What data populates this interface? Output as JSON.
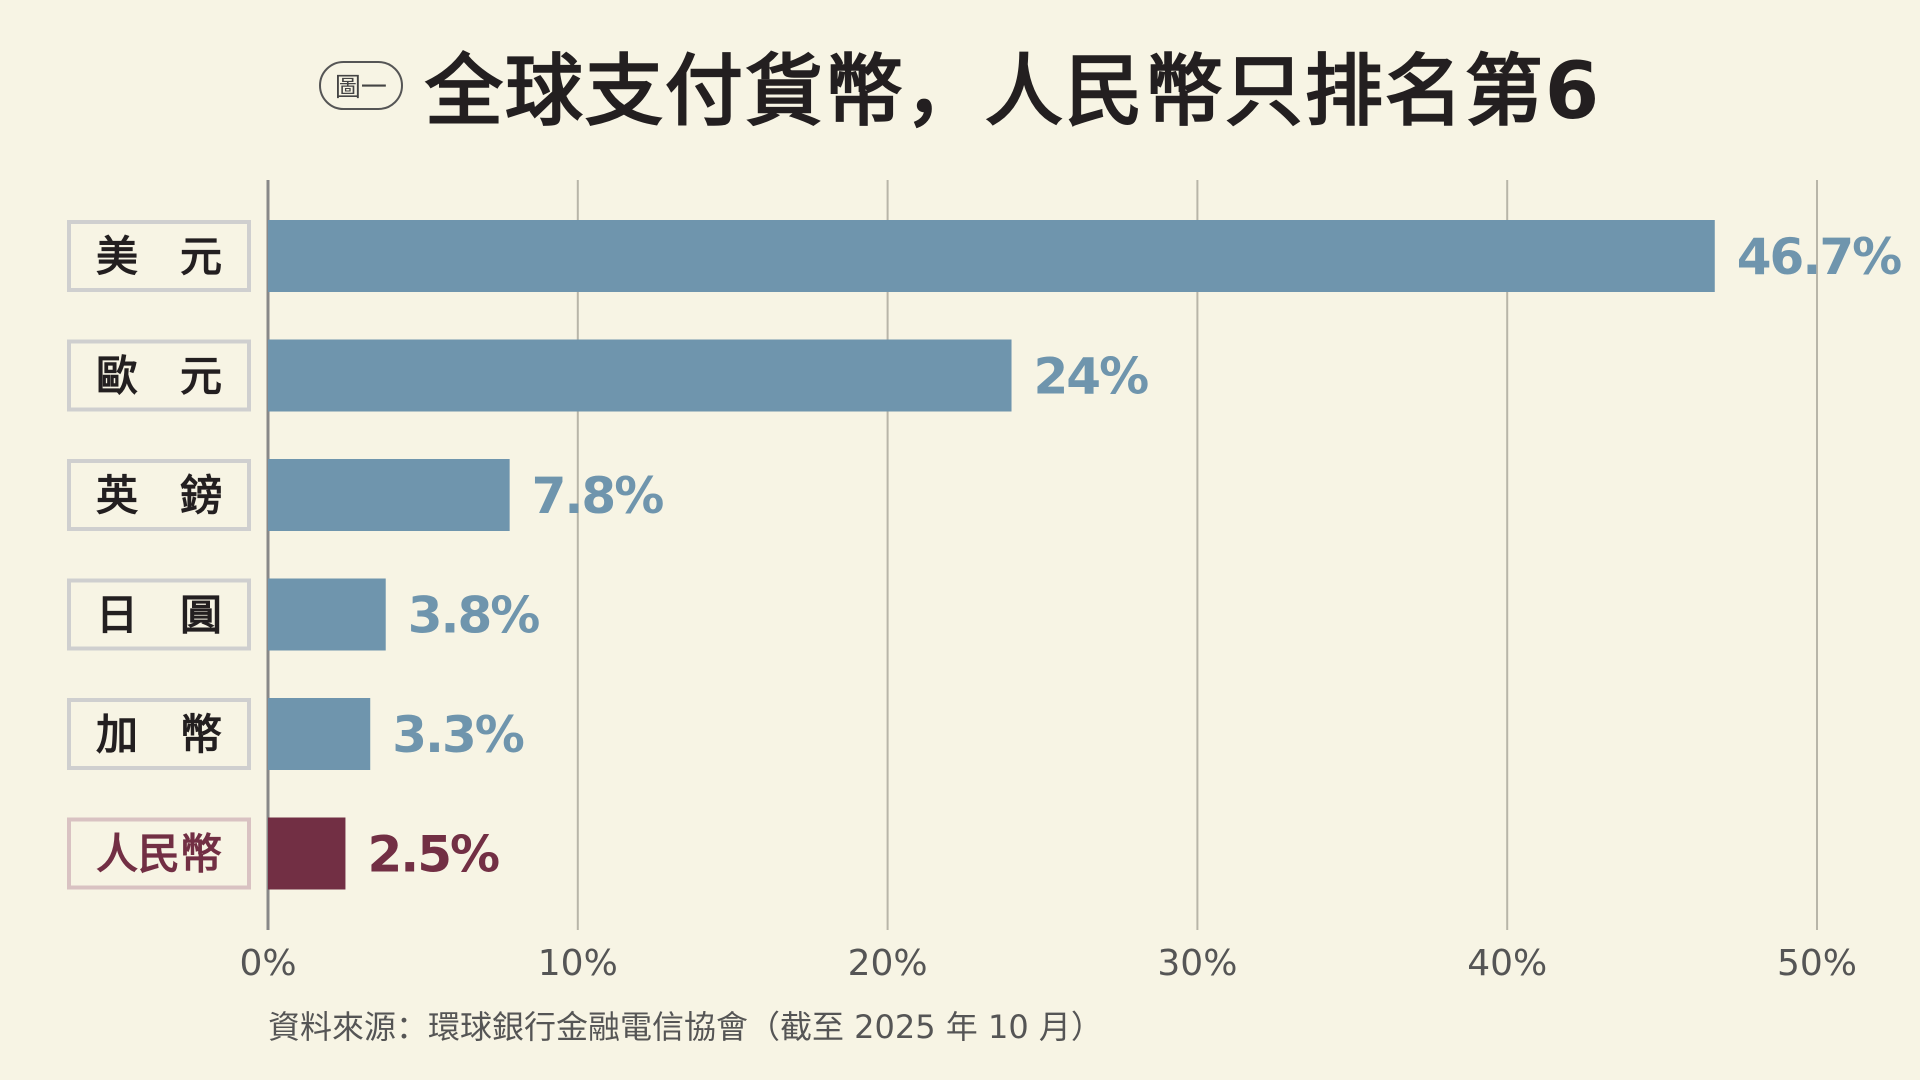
{
  "figure_badge": "圖一",
  "title": "全球支付貨幣，人民幣只排名第6",
  "source": "資料來源：環球銀行金融電信協會（截至 2025 年 10 月）",
  "colors": {
    "background": "#f7f4e4",
    "bar_default": "#6f95ad",
    "bar_highlight": "#722f44",
    "label_default": "#6f95ad",
    "label_highlight": "#722f44",
    "category_text": "#231f20",
    "category_highlight_text": "#722f44",
    "gridline": "#b8b5a8",
    "axis": "#888888"
  },
  "chart_data": {
    "type": "bar",
    "orientation": "horizontal",
    "categories": [
      "美　元",
      "歐　元",
      "英　鎊",
      "日　圓",
      "加　幣",
      "人民幣"
    ],
    "values": [
      46.7,
      24,
      7.8,
      3.8,
      3.3,
      2.5
    ],
    "value_labels": [
      "46.7%",
      "24%",
      "7.8%",
      "3.8%",
      "3.3%",
      "2.5%"
    ],
    "highlight": "人民幣",
    "xlim": [
      0,
      50
    ],
    "xticks": [
      0,
      10,
      20,
      30,
      40,
      50
    ],
    "xtick_labels": [
      "0%",
      "10%",
      "20%",
      "30%",
      "40%",
      "50%"
    ],
    "grid": true
  }
}
